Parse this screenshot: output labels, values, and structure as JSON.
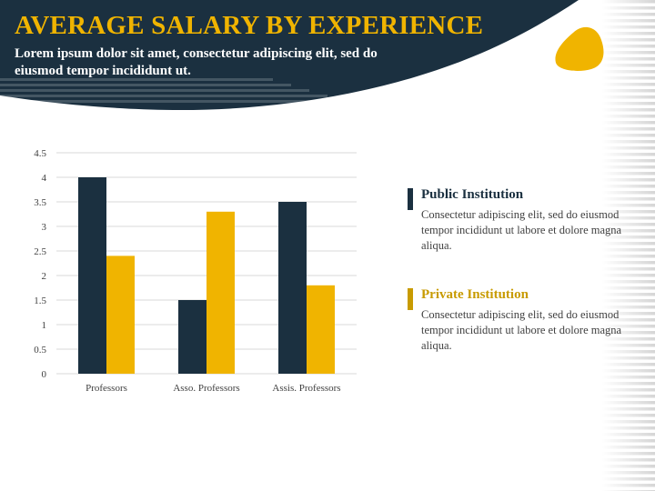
{
  "header": {
    "title": "AVERAGE SALARY BY EXPERIENCE",
    "subtitle": "Lorem ipsum dolor sit amet, consectetur adipiscing elit, sed do eiusmod tempor incididunt ut."
  },
  "colors": {
    "navy": "#1b3040",
    "gold": "#f0b400",
    "text": "#404040",
    "grid": "#d9d9d9"
  },
  "legend": [
    {
      "name": "Public Institution",
      "color": "#1b3040",
      "desc": "Consectetur adipiscing elit, sed do eiusmod tempor incididunt ut labore et dolore magna aliqua."
    },
    {
      "name": "Private Institution",
      "color": "#c89b00",
      "desc": "Consectetur adipiscing elit, sed do eiusmod tempor incididunt ut labore et dolore magna aliqua."
    }
  ],
  "chart_data": {
    "type": "bar",
    "categories": [
      "Professors",
      "Asso. Professors",
      "Assis. Professors"
    ],
    "series": [
      {
        "name": "Public Institution",
        "color": "#1b3040",
        "values": [
          4,
          1.5,
          3.5
        ]
      },
      {
        "name": "Private Institution",
        "color": "#f0b400",
        "values": [
          2.4,
          3.3,
          1.8
        ]
      }
    ],
    "yticks": [
      "0",
      "0.5",
      "1",
      "1.5",
      "2",
      "2.5",
      "3",
      "3.5",
      "4",
      "4.5"
    ],
    "ylim": [
      0,
      4.5
    ],
    "grid": true,
    "legend_position": "right"
  }
}
